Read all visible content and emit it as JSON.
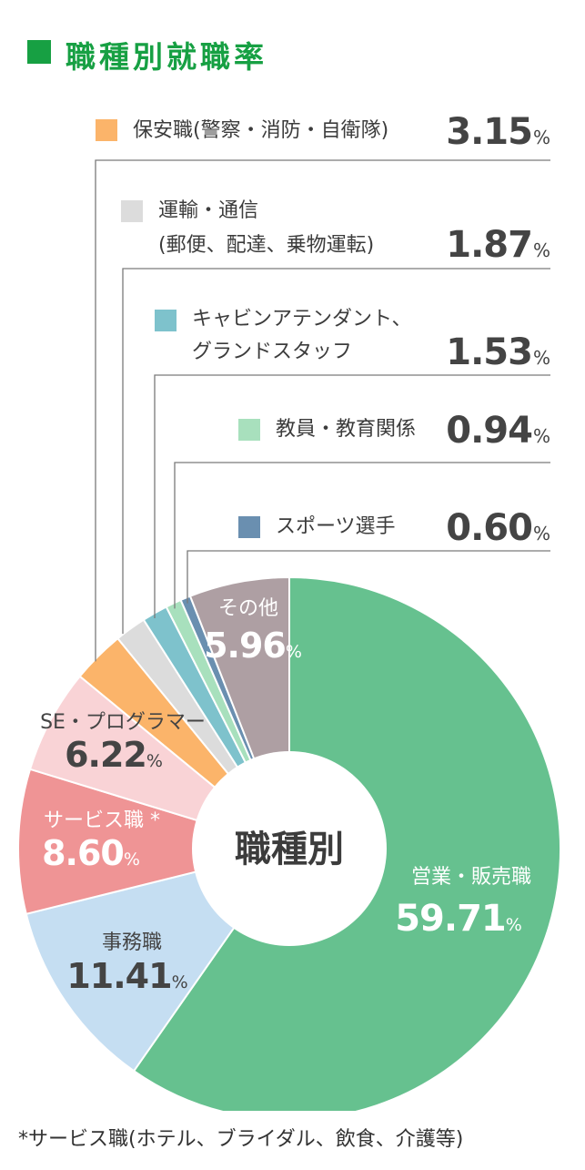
{
  "title": "職種別就職率",
  "center_label": "職種別",
  "footnote": "*サービス職(ホテル、ブライダル、飲食、介護等)",
  "percent_symbol": "%",
  "chart_data": {
    "type": "pie",
    "title": "職種別就職率",
    "unit": "%",
    "slices": [
      {
        "label": "営業・販売職",
        "value": 59.71,
        "display": "59.71",
        "color": "#66c18f"
      },
      {
        "label": "事務職",
        "value": 11.41,
        "display": "11.41",
        "color": "#c5def2"
      },
      {
        "label": "サービス職 *",
        "value": 8.6,
        "display": "8.60",
        "color": "#ef9495"
      },
      {
        "label": "SE・プログラマー",
        "value": 6.22,
        "display": "6.22",
        "color": "#f9d3d6"
      },
      {
        "label": "保安職(警察・消防・自衛隊)",
        "value": 3.15,
        "display": "3.15",
        "color": "#fbb46a"
      },
      {
        "label": "運輸・通信(郵便、配達、乗物運転)",
        "value": 1.87,
        "display": "1.87",
        "color": "#dcdcdc"
      },
      {
        "label": "キャビンアテンダント、グランドスタッフ",
        "value": 1.53,
        "display": "1.53",
        "color": "#7ec2cc"
      },
      {
        "label": "教員・教育関係",
        "value": 0.94,
        "display": "0.94",
        "color": "#a8e0bd"
      },
      {
        "label": "スポーツ選手",
        "value": 0.6,
        "display": "0.60",
        "color": "#6a8fb0"
      },
      {
        "label": "その他",
        "value": 5.96,
        "display": "5.96",
        "color": "#ae9fa3"
      }
    ]
  },
  "legend": [
    {
      "lines": [
        "保安職(警察・消防・自衛隊)"
      ],
      "value": "3.15",
      "color": "#fbb46a"
    },
    {
      "lines": [
        "運輸・通信",
        "(郵便、配達、乗物運転)"
      ],
      "value": "1.87",
      "color": "#dcdcdc"
    },
    {
      "lines": [
        "キャビンアテンダント、",
        "グランドスタッフ"
      ],
      "value": "1.53",
      "color": "#7ec2cc"
    },
    {
      "lines": [
        "教員・教育関係"
      ],
      "value": "0.94",
      "color": "#a8e0bd"
    },
    {
      "lines": [
        "スポーツ選手"
      ],
      "value": "0.60",
      "color": "#6a8fb0"
    }
  ],
  "inner_labels": [
    {
      "name": "営業・販売職",
      "value": "59.71",
      "color": "#ffffff"
    },
    {
      "name": "事務職",
      "value": "11.41",
      "color": "#444444"
    },
    {
      "name": "サービス職 *",
      "value": "8.60",
      "color": "#ffffff"
    },
    {
      "name": "SE・プログラマー",
      "value": "6.22",
      "color": "#444444"
    },
    {
      "name": "その他",
      "value": "5.96",
      "color": "#ffffff"
    }
  ]
}
